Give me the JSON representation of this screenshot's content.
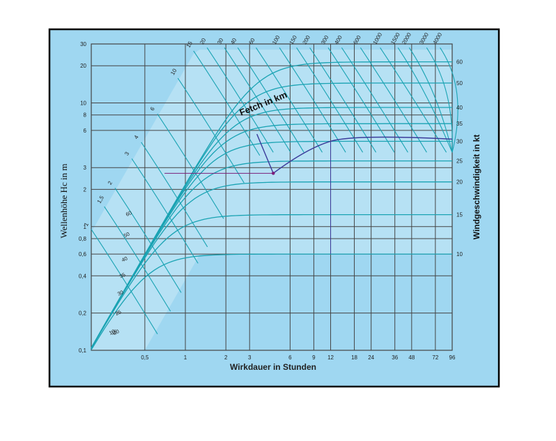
{
  "chart_data": {
    "type": "line",
    "title": "",
    "xlabel": "Wirkdauer in Stunden",
    "ylabel_left": "Wellenhöhe Hc in m",
    "ylabel_right": "Windgeschwindigkeit in kt",
    "xscale": "log",
    "yscale": "log",
    "xlim": [
      0.2,
      96
    ],
    "ylim": [
      0.1,
      30
    ],
    "x_ticks": [
      {
        "v": 0.5,
        "label": "0,5"
      },
      {
        "v": 1,
        "label": "1"
      },
      {
        "v": 2,
        "label": "2"
      },
      {
        "v": 3,
        "label": "3"
      },
      {
        "v": 6,
        "label": "6"
      },
      {
        "v": 9,
        "label": "9"
      },
      {
        "v": 12,
        "label": "12"
      },
      {
        "v": 18,
        "label": "18"
      },
      {
        "v": 24,
        "label": "24"
      },
      {
        "v": 36,
        "label": "36"
      },
      {
        "v": 48,
        "label": "48"
      },
      {
        "v": 72,
        "label": "72"
      },
      {
        "v": 96,
        "label": "96"
      }
    ],
    "y_ticks": [
      {
        "v": 0.1,
        "label": "0,1"
      },
      {
        "v": 0.2,
        "label": "0,2"
      },
      {
        "v": 0.4,
        "label": "0,4"
      },
      {
        "v": 0.6,
        "label": "0,6"
      },
      {
        "v": 0.8,
        "label": "0,8"
      },
      {
        "v": 1,
        "label": "1"
      },
      {
        "v": 2,
        "label": "2"
      },
      {
        "v": 3,
        "label": "3"
      },
      {
        "v": 6,
        "label": "6"
      },
      {
        "v": 8,
        "label": "8"
      },
      {
        "v": 10,
        "label": "10"
      },
      {
        "v": 20,
        "label": "20"
      },
      {
        "v": 30,
        "label": "30"
      }
    ],
    "wind_speed_series": [
      {
        "label": "10",
        "H": 0.6
      },
      {
        "label": "15",
        "H": 1.25
      },
      {
        "label": "20",
        "H": 2.3
      },
      {
        "label": "25",
        "H": 3.4
      },
      {
        "label": "30",
        "H": 4.9
      },
      {
        "label": "35",
        "H": 6.8
      },
      {
        "label": "40",
        "H": 9.2
      },
      {
        "label": "50",
        "H": 14.5
      },
      {
        "label": "60",
        "H": 21.5
      }
    ],
    "fetch_label_title": "Fetch in km",
    "fetch_lines": [
      {
        "label": "1",
        "x": 0.2
      },
      {
        "label": "1,5",
        "x": 0.25
      },
      {
        "label": "2",
        "x": 0.3
      },
      {
        "label": "3",
        "x": 0.4
      },
      {
        "label": "4",
        "x": 0.47
      },
      {
        "label": "6",
        "x": 0.62
      },
      {
        "label": "10",
        "x": 0.88
      },
      {
        "label": "15",
        "x": 1.15
      },
      {
        "label": "20",
        "x": 1.45
      },
      {
        "label": "30",
        "x": 1.95
      },
      {
        "label": "40",
        "x": 2.45
      },
      {
        "label": "60",
        "x": 3.35
      },
      {
        "label": "100",
        "x": 5.0
      },
      {
        "label": "150",
        "x": 6.7
      },
      {
        "label": "200",
        "x": 8.4
      },
      {
        "label": "300",
        "x": 11.5
      },
      {
        "label": "400",
        "x": 14.5
      },
      {
        "label": "600",
        "x": 20.0
      },
      {
        "label": "1000",
        "x": 28.0
      },
      {
        "label": "1500",
        "x": 38.0
      },
      {
        "label": "2000",
        "x": 46.0
      },
      {
        "label": "3000",
        "x": 62.0
      },
      {
        "label": "4000",
        "x": 78.0
      }
    ],
    "example_point": {
      "x": 4.5,
      "y": 2.7
    }
  },
  "colors": {
    "frame_bg": "#9fd7f1",
    "grid": "#444444",
    "curve": "#1aa3b3",
    "band": "#c9eaf6",
    "example": "#3b3b9a",
    "marker": "#7b1f7b",
    "frame_border": "#000000"
  }
}
